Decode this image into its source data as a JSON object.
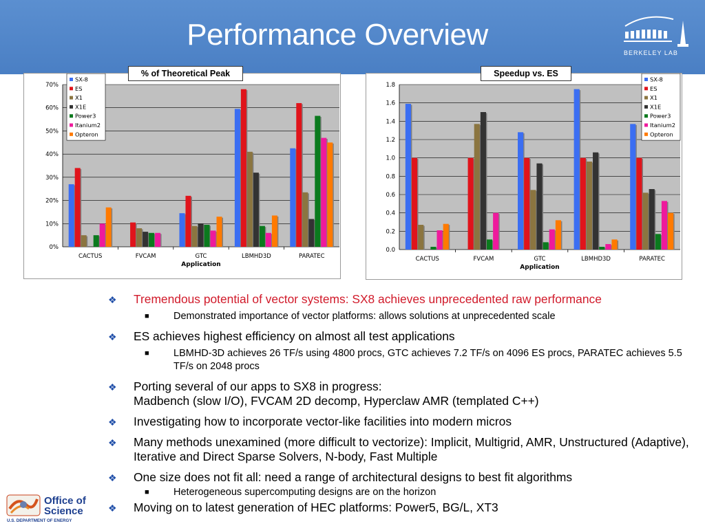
{
  "slide": {
    "title": "Performance Overview"
  },
  "logos": {
    "lab_text": "BERKELEY LAB",
    "doe_line1": "Office of",
    "doe_line2": "Science",
    "doe_sub": "U.S. DEPARTMENT OF ENERGY"
  },
  "chart_data": [
    {
      "type": "bar",
      "title": "% of Theoretical Peak",
      "xlabel": "Application",
      "categories": [
        "CACTUS",
        "FVCAM",
        "GTC",
        "LBMHD3D",
        "PARATEC"
      ],
      "ylim": [
        0,
        70
      ],
      "yticks": [
        "0%",
        "10%",
        "20%",
        "30%",
        "40%",
        "50%",
        "60%",
        "70%"
      ],
      "legend": "top-left",
      "series": [
        {
          "name": "SX-8",
          "color": "#3b6ef2",
          "values": [
            27,
            null,
            14.5,
            59.5,
            42.5
          ]
        },
        {
          "name": "ES",
          "color": "#e0141b",
          "values": [
            34,
            10.5,
            22,
            68,
            62
          ]
        },
        {
          "name": "X1",
          "color": "#8b7540",
          "values": [
            5,
            8,
            9,
            41,
            23.5
          ]
        },
        {
          "name": "X1E",
          "color": "#333333",
          "values": [
            null,
            6.5,
            10,
            32,
            12
          ]
        },
        {
          "name": "Power3",
          "color": "#0b7a1e",
          "values": [
            5,
            6,
            9.5,
            9,
            56.5
          ]
        },
        {
          "name": "Itanium2",
          "color": "#ee1a9c",
          "values": [
            10,
            6,
            7,
            6,
            47
          ]
        },
        {
          "name": "Opteron",
          "color": "#ff7a00",
          "values": [
            17,
            null,
            13,
            13.5,
            45
          ]
        }
      ]
    },
    {
      "type": "bar",
      "title": "Speedup vs. ES",
      "xlabel": "Application",
      "categories": [
        "CACTUS",
        "FVCAM",
        "GTC",
        "LBMHD3D",
        "PARATEC"
      ],
      "ylim": [
        0,
        1.8
      ],
      "yticks": [
        "0.0",
        "0.2",
        "0.4",
        "0.6",
        "0.8",
        "1.0",
        "1.2",
        "1.4",
        "1.6",
        "1.8"
      ],
      "legend": "top-right",
      "series": [
        {
          "name": "SX-8",
          "color": "#3b6ef2",
          "values": [
            1.59,
            null,
            1.28,
            1.75,
            1.37
          ]
        },
        {
          "name": "ES",
          "color": "#e0141b",
          "values": [
            1.0,
            1.0,
            1.0,
            1.0,
            1.0
          ]
        },
        {
          "name": "X1",
          "color": "#8b7540",
          "values": [
            0.27,
            1.37,
            0.65,
            0.96,
            0.62
          ]
        },
        {
          "name": "X1E",
          "color": "#333333",
          "values": [
            null,
            1.5,
            0.94,
            1.06,
            0.66
          ]
        },
        {
          "name": "Power3",
          "color": "#0b7a1e",
          "values": [
            0.03,
            0.11,
            0.08,
            0.03,
            0.17
          ]
        },
        {
          "name": "Itanium2",
          "color": "#ee1a9c",
          "values": [
            0.21,
            0.4,
            0.22,
            0.06,
            0.53
          ]
        },
        {
          "name": "Opteron",
          "color": "#ff7a00",
          "values": [
            0.28,
            null,
            0.32,
            0.11,
            0.4
          ]
        }
      ]
    }
  ],
  "bullets": [
    {
      "text": "Tremendous potential of vector systems: SX8 achieves unprecedented raw performance",
      "red": true,
      "sub": [
        "Demonstrated importance of vector platforms: allows solutions at unprecedented scale"
      ]
    },
    {
      "text": "ES achieves highest efficiency on almost all test applications",
      "sub": [
        "LBMHD-3D achieves 26 TF/s using 4800 procs, GTC achieves 7.2 TF/s on 4096 ES procs, PARATEC achieves 5.5 TF/s on 2048 procs"
      ]
    },
    {
      "text": "Porting several of our apps to SX8 in progress:",
      "text2": "Madbench (slow I/O), FVCAM 2D decomp, Hyperclaw AMR (templated C++)"
    },
    {
      "text": "Investigating how to incorporate vector-like facilities into modern micros"
    },
    {
      "text": "Many methods unexamined (more difficult to vectorize): Implicit, Multigrid, AMR, Unstructured (Adaptive), Iterative and Direct Sparse Solvers, N-body, Fast Multiple"
    },
    {
      "text": "One size does not fit all: need a range of architectural designs to best fit algorithms",
      "sub": [
        "Heterogeneous supercomputing designs are on the horizon"
      ]
    },
    {
      "text": "Moving on to latest generation of HEC platforms: Power5, BG/L, XT3"
    }
  ]
}
